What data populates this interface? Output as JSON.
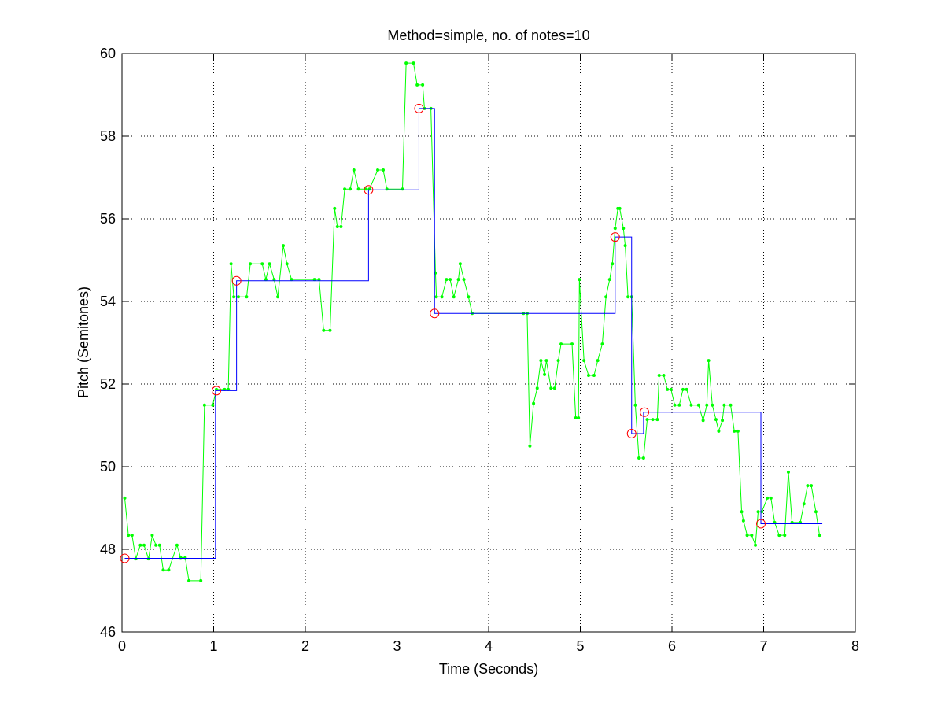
{
  "chart_data": {
    "type": "line",
    "title": "Method=simple, no. of notes=10",
    "xlabel": "Time (Seconds)",
    "ylabel": "Pitch (Semitones)",
    "xlim": [
      0,
      8
    ],
    "ylim": [
      46,
      60
    ],
    "xticks": [
      0,
      1,
      2,
      3,
      4,
      5,
      6,
      7,
      8
    ],
    "yticks": [
      46,
      48,
      50,
      52,
      54,
      56,
      58,
      60
    ],
    "grid": true,
    "series": [
      {
        "color": "#00ff00",
        "marker": "dot",
        "line": true,
        "x": [
          0.03,
          0.07,
          0.11,
          0.15,
          0.2,
          0.24,
          0.29,
          0.33,
          0.37,
          0.41,
          0.45,
          0.51,
          0.6,
          0.64,
          0.69,
          0.73,
          0.86,
          0.9,
          0.99,
          1.03,
          1.12,
          1.16,
          1.19,
          1.22,
          1.27,
          1.36,
          1.4,
          1.53,
          1.57,
          1.61,
          1.66,
          1.7,
          1.76,
          1.8,
          1.85,
          2.1,
          2.15,
          2.2,
          2.27,
          2.32,
          2.35,
          2.39,
          2.43,
          2.49,
          2.53,
          2.58,
          2.66,
          2.7,
          2.79,
          2.85,
          2.89,
          3.06,
          3.1,
          3.18,
          3.22,
          3.28,
          3.3,
          3.37,
          3.42,
          3.43,
          3.49,
          3.54,
          3.58,
          3.62,
          3.67,
          3.69,
          3.73,
          3.78,
          3.82,
          4.38,
          4.42,
          4.45,
          4.49,
          4.53,
          4.57,
          4.61,
          4.63,
          4.68,
          4.72,
          4.76,
          4.79,
          4.91,
          4.95,
          4.98,
          4.99,
          5.04,
          5.09,
          5.15,
          5.19,
          5.24,
          5.28,
          5.32,
          5.35,
          5.38,
          5.41,
          5.43,
          5.47,
          5.49,
          5.52,
          5.56,
          5.6,
          5.64,
          5.69,
          5.73,
          5.79,
          5.84,
          5.86,
          5.91,
          5.95,
          5.99,
          6.03,
          6.08,
          6.12,
          6.16,
          6.21,
          6.29,
          6.34,
          6.38,
          6.4,
          6.44,
          6.48,
          6.51,
          6.55,
          6.57,
          6.64,
          6.68,
          6.72,
          6.76,
          6.78,
          6.82,
          6.87,
          6.91,
          6.94,
          6.98,
          7.04,
          7.08,
          7.12,
          7.17,
          7.23,
          7.27,
          7.31,
          7.4,
          7.44,
          7.48,
          7.52,
          7.57,
          7.61
        ],
        "values": [
          49.24,
          48.34,
          48.34,
          47.77,
          48.1,
          48.1,
          47.77,
          48.34,
          48.1,
          48.1,
          47.5,
          47.5,
          48.1,
          47.8,
          47.8,
          47.24,
          47.24,
          51.49,
          51.49,
          51.87,
          51.87,
          51.87,
          54.91,
          54.11,
          54.11,
          54.11,
          54.91,
          54.91,
          54.53,
          54.91,
          54.53,
          54.11,
          55.35,
          54.91,
          54.53,
          54.53,
          54.53,
          53.3,
          53.3,
          56.25,
          55.81,
          55.81,
          56.72,
          56.72,
          57.18,
          56.72,
          56.72,
          56.72,
          57.18,
          57.18,
          56.72,
          56.72,
          59.77,
          59.77,
          59.24,
          59.24,
          58.67,
          58.67,
          54.69,
          54.11,
          54.11,
          54.53,
          54.53,
          54.11,
          54.53,
          54.91,
          54.53,
          54.11,
          53.71,
          53.71,
          53.71,
          50.5,
          51.53,
          51.9,
          52.57,
          52.23,
          52.57,
          51.9,
          51.9,
          52.57,
          52.97,
          52.97,
          51.18,
          51.18,
          54.53,
          52.57,
          52.21,
          52.21,
          52.57,
          52.97,
          54.11,
          54.53,
          54.91,
          55.77,
          56.25,
          56.25,
          55.77,
          55.35,
          54.11,
          54.11,
          51.49,
          50.21,
          50.21,
          51.14,
          51.14,
          51.14,
          52.21,
          52.21,
          51.87,
          51.87,
          51.49,
          51.49,
          51.87,
          51.87,
          51.49,
          51.49,
          51.12,
          51.49,
          52.57,
          51.49,
          51.14,
          50.86,
          51.12,
          51.49,
          51.49,
          50.86,
          50.86,
          48.91,
          48.69,
          48.34,
          48.34,
          48.1,
          48.91,
          48.91,
          49.24,
          49.24,
          48.65,
          48.34,
          48.34,
          49.87,
          48.65,
          48.65,
          49.1,
          49.54,
          49.54,
          48.91,
          48.34
        ]
      },
      {
        "color": "#0000ff",
        "marker": "none",
        "line": true,
        "x": [
          0.03,
          1.02,
          1.02,
          1.25,
          1.25,
          2.69,
          2.69,
          3.24,
          3.24,
          3.41,
          3.41,
          5.38,
          5.38,
          5.56,
          5.56,
          5.69,
          5.69,
          6.97,
          6.97,
          7.64
        ],
        "values": [
          47.78,
          47.78,
          51.84,
          51.84,
          54.5,
          54.5,
          56.7,
          56.7,
          58.67,
          58.67,
          53.71,
          53.71,
          55.56,
          55.56,
          50.8,
          50.8,
          51.32,
          51.32,
          48.62,
          48.62
        ]
      },
      {
        "color": "#ff0000",
        "marker": "circle",
        "line": false,
        "x": [
          0.03,
          1.03,
          1.25,
          2.69,
          3.24,
          3.41,
          5.38,
          5.56,
          5.7,
          6.97
        ],
        "values": [
          47.78,
          51.84,
          54.5,
          56.7,
          58.67,
          53.71,
          55.56,
          50.8,
          51.32,
          48.62
        ]
      }
    ]
  }
}
